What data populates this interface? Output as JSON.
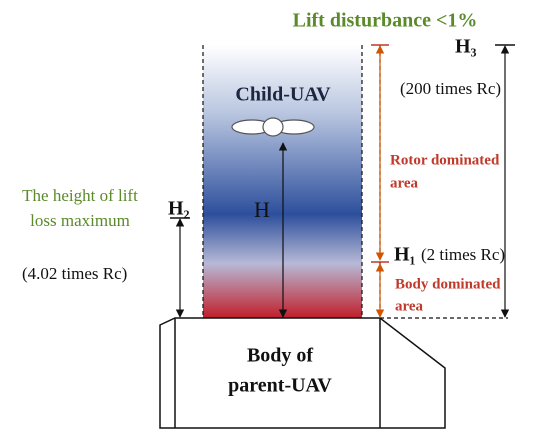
{
  "top_label": "Lift disturbance <1%",
  "child_uav": "Child-UAV",
  "h_label": "H",
  "h1": {
    "symbol": "H₁",
    "note": "(2 times Rc)"
  },
  "h2": {
    "symbol": "H₂",
    "caption": [
      "The height of lift",
      "loss maximum"
    ],
    "note": "(4.02 times Rc)"
  },
  "h3": {
    "symbol": "H₃",
    "note": "(200 times Rc)"
  },
  "rotor_area": [
    "Rotor dominated",
    "area"
  ],
  "body_area": [
    "Body dominated",
    "area"
  ],
  "parent_body": [
    "Body of",
    "parent-UAV"
  ]
}
